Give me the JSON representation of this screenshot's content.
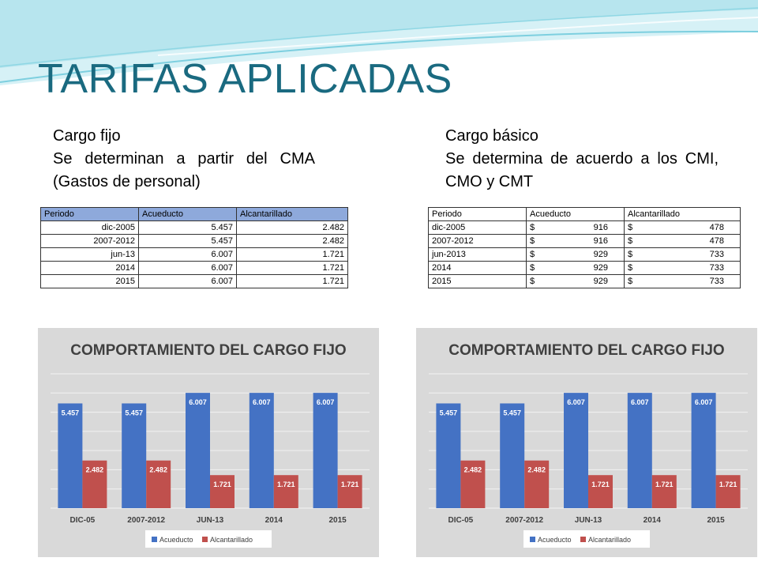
{
  "slide": {
    "title": "TARIFAS APLICADAS"
  },
  "left_section": {
    "heading": "Cargo fijo",
    "description": "Se determinan a partir del CMA (Gastos de personal)"
  },
  "right_section": {
    "heading": "Cargo básico",
    "description": "Se determina de acuerdo a los CMI, CMO y CMT"
  },
  "table_fijo": {
    "headers": [
      "Periodo",
      "Acueducto",
      "Alcantarillado"
    ],
    "rows": [
      [
        "dic-2005",
        "5.457",
        "2.482"
      ],
      [
        "2007-2012",
        "5.457",
        "2.482"
      ],
      [
        "jun-13",
        "6.007",
        "1.721"
      ],
      [
        "2014",
        "6.007",
        "1.721"
      ],
      [
        "2015",
        "6.007",
        "1.721"
      ]
    ]
  },
  "table_basico": {
    "headers": [
      "Periodo",
      "Acueducto",
      "Alcantarillado"
    ],
    "currency_symbol": "$",
    "rows": [
      [
        "dic-2005",
        "916",
        "478"
      ],
      [
        "2007-2012",
        "916",
        "478"
      ],
      [
        "jun-2013",
        "929",
        "733"
      ],
      [
        "2014",
        "929",
        "733"
      ],
      [
        "2015",
        "929",
        "733"
      ]
    ]
  },
  "colors": {
    "title": "#1a6a80",
    "header_fill": "#8ea9db",
    "acueducto": "#4472c4",
    "alcantarillado": "#c0504d",
    "chart_background": "#d9d9d9"
  },
  "chart_data": [
    {
      "type": "bar",
      "title": "COMPORTAMIENTO DEL CARGO FIJO",
      "categories": [
        "DIC-05",
        "2007-2012",
        "JUN-13",
        "2014",
        "2015"
      ],
      "series": [
        {
          "name": "Acueducto",
          "values": [
            5.457,
            5.457,
            6.007,
            6.007,
            6.007
          ],
          "labels": [
            "5.457",
            "5.457",
            "6.007",
            "6.007",
            "6.007"
          ],
          "color": "#4472c4"
        },
        {
          "name": "Alcantarillado",
          "values": [
            2.482,
            2.482,
            1.721,
            1.721,
            1.721
          ],
          "labels": [
            "2.482",
            "2.482",
            "1.721",
            "1.721",
            "1.721"
          ],
          "color": "#c0504d"
        }
      ],
      "ylim": [
        0,
        7
      ],
      "grid": true,
      "legend": "bottom"
    },
    {
      "type": "bar",
      "title": "COMPORTAMIENTO DEL CARGO FIJO",
      "categories": [
        "DIC-05",
        "2007-2012",
        "JUN-13",
        "2014",
        "2015"
      ],
      "series": [
        {
          "name": "Acueducto",
          "values": [
            5.457,
            5.457,
            6.007,
            6.007,
            6.007
          ],
          "labels": [
            "5.457",
            "5.457",
            "6.007",
            "6.007",
            "6.007"
          ],
          "color": "#4472c4"
        },
        {
          "name": "Alcantarillado",
          "values": [
            2.482,
            2.482,
            1.721,
            1.721,
            1.721
          ],
          "labels": [
            "2.482",
            "2.482",
            "1.721",
            "1.721",
            "1.721"
          ],
          "color": "#c0504d"
        }
      ],
      "ylim": [
        0,
        7
      ],
      "grid": true,
      "legend": "bottom"
    }
  ]
}
